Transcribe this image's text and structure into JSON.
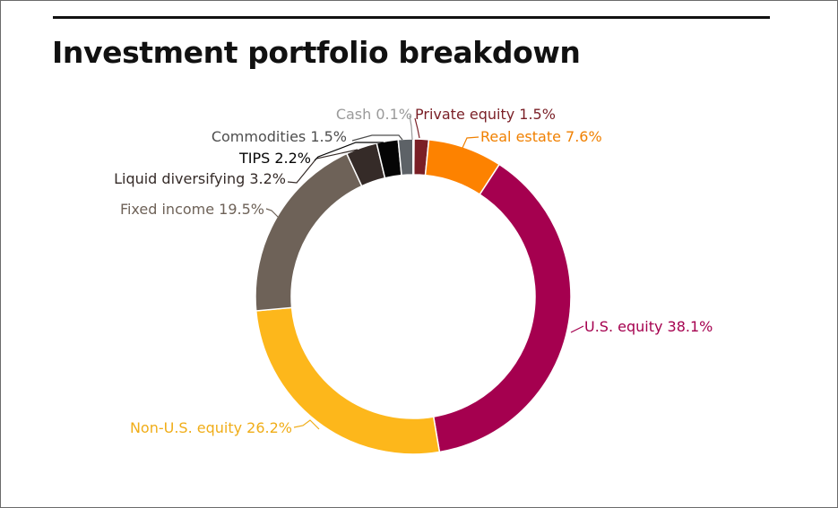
{
  "chart_data": {
    "type": "pie",
    "variant": "donut",
    "title": "Investment portfolio breakdown",
    "slices": [
      {
        "label": "Private equity",
        "value": 1.5,
        "display": "Private equity 1.5%",
        "color": "#7a1f26"
      },
      {
        "label": "Real estate",
        "value": 7.6,
        "display": "Real estate 7.6%",
        "color": "#fd8200"
      },
      {
        "label": "U.S. equity",
        "value": 38.1,
        "display": "U.S. equity 38.1%",
        "color": "#a5004f"
      },
      {
        "label": "Non-U.S. equity",
        "value": 26.2,
        "display": "Non-U.S. equity 26.2%",
        "color": "#fdb71b"
      },
      {
        "label": "Fixed income",
        "value": 19.5,
        "display": "Fixed income 19.5%",
        "color": "#6e6258"
      },
      {
        "label": "Liquid diversifying",
        "value": 3.2,
        "display": "Liquid diversifying 3.2%",
        "color": "#352b28"
      },
      {
        "label": "TIPS",
        "value": 2.2,
        "display": "TIPS 2.2%",
        "color": "#050505"
      },
      {
        "label": "Commodities",
        "value": 1.5,
        "display": "Commodities 1.5%",
        "color": "#5d6267"
      },
      {
        "label": "Cash",
        "value": 0.1,
        "display": "Cash 0.1%",
        "color": "#9a9a9a"
      }
    ],
    "label_colors": {
      "Private equity": "#7a1f26",
      "Real estate": "#f08000",
      "U.S. equity": "#a5004f",
      "Non-U.S. equity": "#f0ad18",
      "Fixed income": "#6e6258",
      "Liquid diversifying": "#352b28",
      "TIPS": "#050505",
      "Commodities": "#4e4e4e",
      "Cash": "#9a9a9a"
    }
  }
}
